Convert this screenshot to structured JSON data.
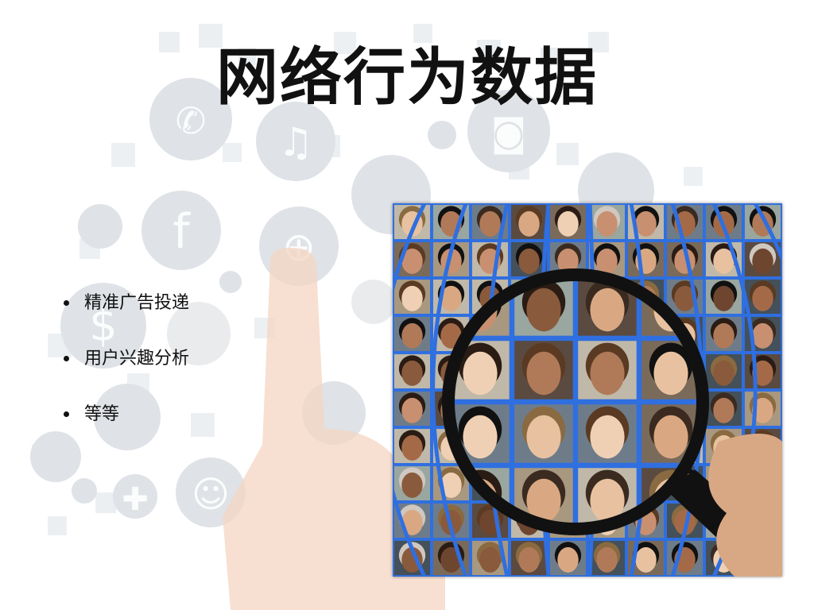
{
  "slide": {
    "title": "网络行为数据",
    "bullets": [
      {
        "text": "精准广告投递"
      },
      {
        "text": "用户兴趣分析"
      },
      {
        "text": "等等"
      }
    ]
  },
  "background": {
    "icons": [
      "chat-icon",
      "music-icon",
      "lock-icon",
      "camera-icon",
      "facebook-icon",
      "lightbulb-icon",
      "rss-icon",
      "globe-icon",
      "pin-icon",
      "phone-icon",
      "book-icon",
      "dollar-icon",
      "hand-icon",
      "briefcase-icon",
      "cart-icon",
      "medical-icon",
      "user-icon"
    ],
    "finger_color": "#f4d5c2"
  },
  "photo": {
    "subject": "magnifying-glass-over-face-grid",
    "grid_color": "#2f6fe0",
    "lens_color": "#111111"
  }
}
